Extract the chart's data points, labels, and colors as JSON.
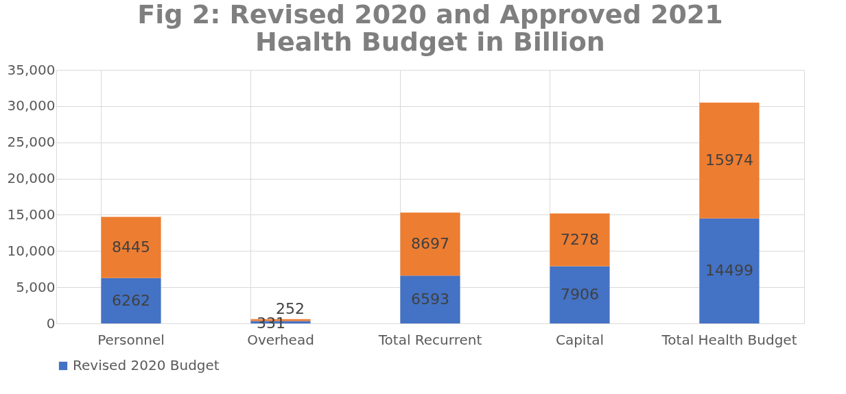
{
  "chart_data": {
    "type": "bar",
    "title": "Fig 2: Revised 2020 and Approved 2021 Health Budget in Billion",
    "categories": [
      "Personnel",
      "Overhead",
      "Total Recurrent",
      "Capital",
      "Total Health Budget"
    ],
    "stacked": true,
    "series": [
      {
        "name": "Revised 2020 Budget",
        "color": "#4472c4",
        "values": [
          6262,
          331,
          6593,
          7906,
          14499
        ]
      },
      {
        "color": "#ed7d31",
        "values": [
          8445,
          252,
          8697,
          7278,
          15974
        ]
      }
    ],
    "ylim": [
      0,
      35000
    ],
    "yticks": [
      {
        "value": 0,
        "label": "0"
      },
      {
        "value": 5000,
        "label": "5,000"
      },
      {
        "value": 10000,
        "label": "10,000"
      },
      {
        "value": 15000,
        "label": "15,000"
      },
      {
        "value": 20000,
        "label": "20,000"
      },
      {
        "value": 25000,
        "label": "25,000"
      },
      {
        "value": 30000,
        "label": "30,000"
      },
      {
        "value": 35000,
        "label": "35,000"
      }
    ],
    "grid": true,
    "legend": "bottom",
    "data_labels": true
  }
}
